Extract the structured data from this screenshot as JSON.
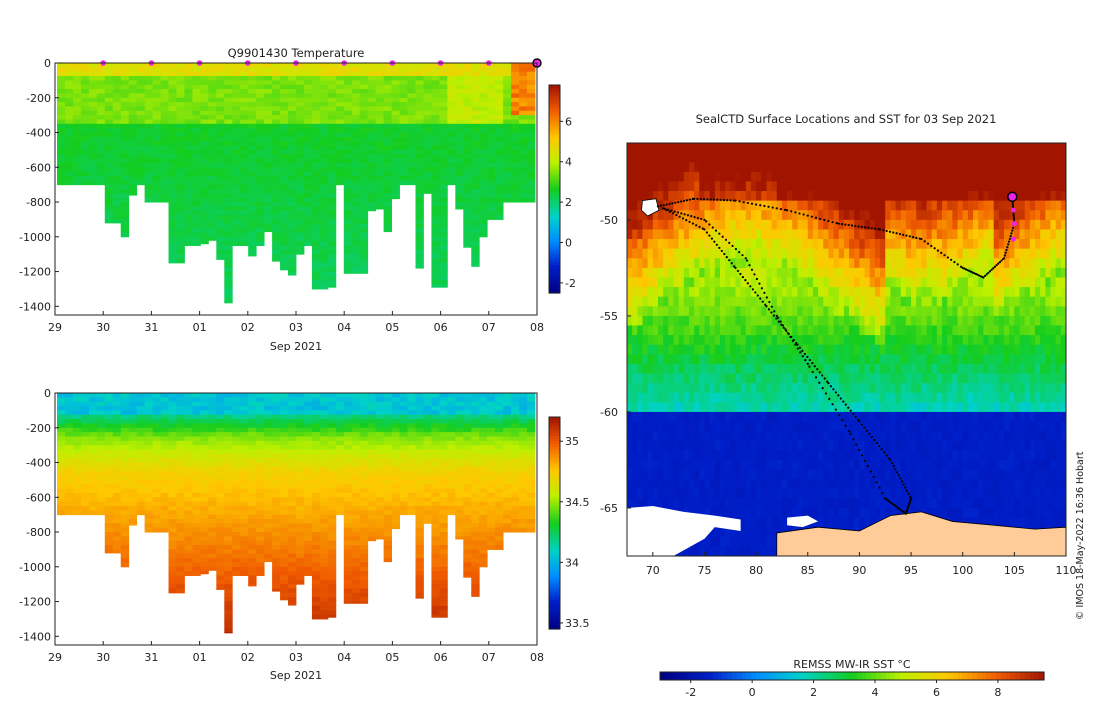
{
  "chart_data": [
    {
      "type": "heatmap",
      "title": "Q9901430  Temperature",
      "xlabel": "Sep 2021",
      "ylabel": "",
      "x_ticks": [
        "29",
        "30",
        "31",
        "01",
        "02",
        "03",
        "04",
        "05",
        "06",
        "07",
        "08"
      ],
      "y_ticks": [
        "0",
        "-200",
        "-400",
        "-600",
        "-800",
        "-1000",
        "-1200",
        "-1400"
      ],
      "ylim": [
        -1450,
        0
      ],
      "colorbar_ticks": [
        "6",
        "4",
        "2",
        "0",
        "-2"
      ],
      "colorbar_range": [
        -2.5,
        7.8
      ],
      "profile_max_depths_m": [
        700,
        700,
        700,
        700,
        700,
        700,
        920,
        920,
        1000,
        760,
        700,
        800,
        800,
        800,
        1150,
        1150,
        1050,
        1050,
        1040,
        1020,
        1130,
        1380,
        1050,
        1050,
        1110,
        1050,
        970,
        1140,
        1190,
        1220,
        1100,
        1050,
        1300,
        1300,
        1290,
        700,
        1210,
        1210,
        1210,
        850,
        840,
        970,
        780,
        700,
        700,
        1180,
        750,
        1290,
        1290,
        700,
        840,
        1060,
        1170,
        1000,
        900,
        900,
        800,
        800,
        800,
        800
      ]
    },
    {
      "type": "heatmap",
      "title": "",
      "xlabel": "Sep 2021",
      "ylabel": "",
      "x_ticks": [
        "29",
        "30",
        "31",
        "01",
        "02",
        "03",
        "04",
        "05",
        "06",
        "07",
        "08"
      ],
      "y_ticks": [
        "0",
        "-200",
        "-400",
        "-600",
        "-800",
        "-1000",
        "-1200",
        "-1400"
      ],
      "ylim": [
        -1450,
        0
      ],
      "colorbar_ticks": [
        "35",
        "34.5",
        "34",
        "33.5"
      ],
      "colorbar_range": [
        33.45,
        35.2
      ]
    },
    {
      "type": "heatmap",
      "title": "SealCTD Surface Locations and SST for 03 Sep 2021",
      "x_ticks": [
        "70",
        "75",
        "80",
        "85",
        "90",
        "95",
        "100",
        "105",
        "110"
      ],
      "y_ticks": [
        "-50",
        "-55",
        "-60",
        "-65"
      ],
      "xlim": [
        67.5,
        110
      ],
      "ylim": [
        -67.5,
        -46
      ],
      "colorbar_label": "REMSS MW-IR SST °C",
      "colorbar_ticks": [
        "-2",
        "0",
        "2",
        "4",
        "6",
        "8"
      ],
      "colorbar_range": [
        -3,
        9.5
      ],
      "latest_position": [
        104.8,
        -48.8
      ]
    }
  ],
  "credit": "© IMOS 18-May-2022 16:36 Hobart",
  "colors": {
    "land": "#ffcc99",
    "ice": "#ffffff",
    "track": "#000000",
    "surface_marker": "#ee22ee"
  }
}
